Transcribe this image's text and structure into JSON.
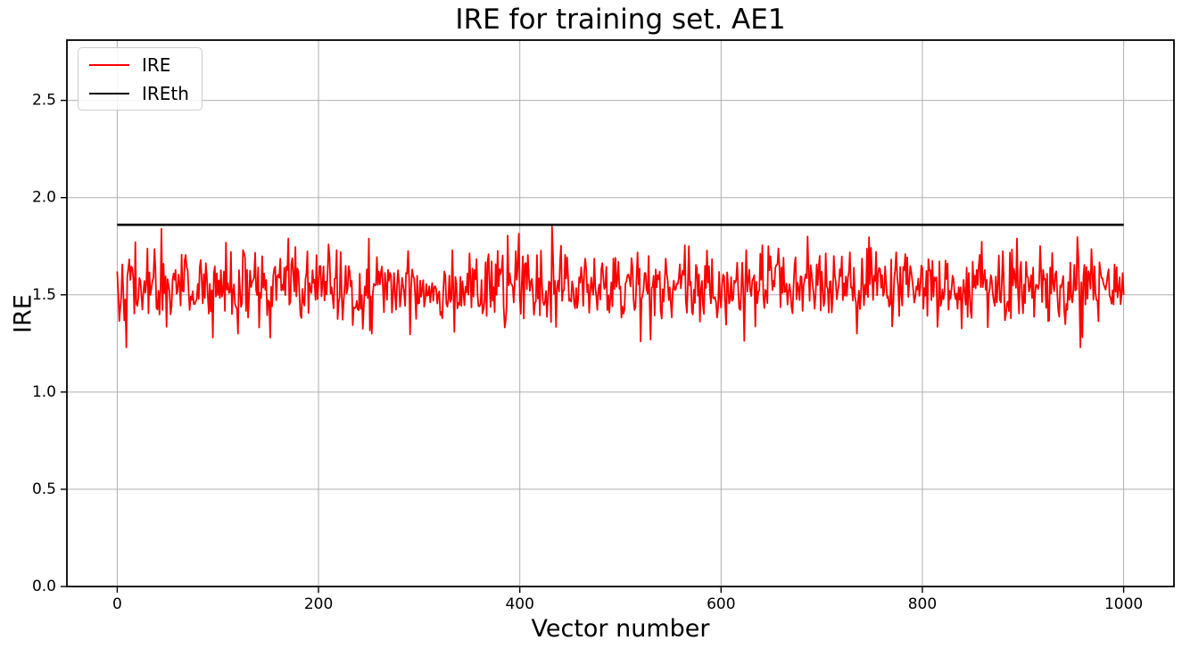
{
  "title": "IRE for training set. AE1",
  "chart_data": {
    "type": "line",
    "title": "IRE for training set. AE1",
    "xlabel": "Vector number",
    "ylabel": "IRE",
    "xlim": [
      -50,
      1050
    ],
    "ylim": [
      0,
      2.81
    ],
    "xticks": [
      0,
      200,
      400,
      600,
      800,
      1000
    ],
    "xtick_labels": [
      "0",
      "200",
      "400",
      "600",
      "800",
      "1000"
    ],
    "yticks": [
      0,
      0.5,
      1.0,
      1.5,
      2.0,
      2.5
    ],
    "ytick_labels": [
      "0.0",
      "0.5",
      "1.0",
      "1.5",
      "2.0",
      "2.5"
    ],
    "grid": true,
    "legend_position": "upper-left",
    "series": [
      {
        "name": "IRE",
        "color": "#ff0000",
        "linewidth": 1.8,
        "type": "noisy",
        "n": 1001,
        "x_start": 0,
        "x_end": 1000,
        "mean": 1.54,
        "std": 0.095,
        "min": 1.23,
        "max": 1.85,
        "seed": 42,
        "keypoints": {
          "0": 1.62,
          "44": 1.84,
          "95": 1.28,
          "120": 1.3,
          "152": 1.28,
          "170": 1.79,
          "210": 1.76,
          "253": 1.3,
          "432": 1.85,
          "520": 1.26,
          "530": 1.27,
          "686": 1.8,
          "735": 1.3,
          "894": 1.79,
          "957": 1.23,
          "1000": 1.5
        }
      },
      {
        "name": "IREth",
        "color": "#000000",
        "linewidth": 2.7,
        "type": "constant",
        "value": 1.86,
        "x_start": 0,
        "x_end": 1000
      }
    ],
    "legend": [
      {
        "label": "IRE",
        "color": "#ff0000"
      },
      {
        "label": "IREth",
        "color": "#000000"
      }
    ]
  },
  "colors": {
    "grid": "#b0b0b0",
    "spine": "#000000",
    "background": "#ffffff",
    "legend_border": "#cccccc",
    "tick": "#000000"
  }
}
